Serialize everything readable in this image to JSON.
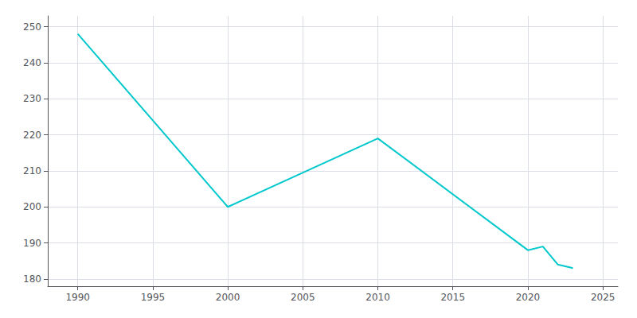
{
  "chart_data": {
    "type": "line",
    "x": [
      1990,
      2000,
      2010,
      2020,
      2021,
      2022,
      2023
    ],
    "values": [
      248,
      200,
      219,
      188,
      189,
      184,
      183
    ],
    "color": "#00C8CC",
    "xlim": [
      1988,
      2026
    ],
    "ylim": [
      178,
      253
    ],
    "xticks": [
      1990,
      1995,
      2000,
      2005,
      2010,
      2015,
      2020,
      2025
    ],
    "yticks": [
      180,
      190,
      200,
      210,
      220,
      230,
      240,
      250
    ],
    "grid": true
  }
}
